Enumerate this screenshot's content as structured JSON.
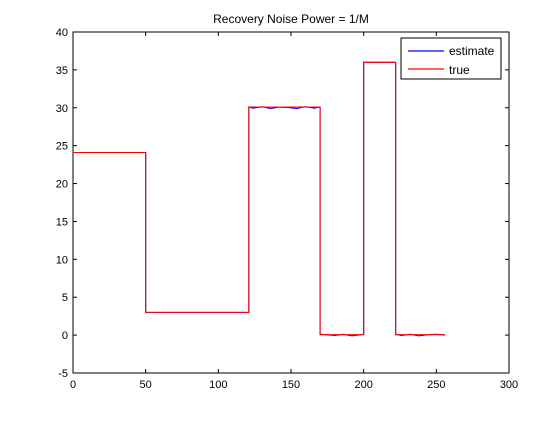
{
  "chart_data": {
    "type": "line",
    "title": "Recovery Noise Power = 1/M",
    "xlabel": "",
    "ylabel": "",
    "xlim": [
      0,
      300
    ],
    "ylim": [
      -5,
      40
    ],
    "xticks": [
      0,
      50,
      100,
      150,
      200,
      250,
      300
    ],
    "yticks": [
      -5,
      0,
      5,
      10,
      15,
      20,
      25,
      30,
      35,
      40
    ],
    "grid": false,
    "legend_position": "top-right",
    "series": [
      {
        "name": "estimate",
        "color": "#0000ff",
        "x": [
          0,
          50,
          50,
          121,
          121,
          124,
          130,
          136,
          142,
          148,
          154,
          160,
          166,
          170,
          170,
          174,
          180,
          186,
          192,
          198,
          200,
          200,
          222,
          222,
          226,
          232,
          238,
          244,
          250,
          256
        ],
        "y": [
          24.1,
          24.1,
          3.0,
          3.0,
          30.1,
          29.95,
          30.15,
          29.9,
          30.1,
          30.05,
          29.9,
          30.15,
          29.95,
          30.1,
          0.1,
          0.05,
          -0.05,
          0.1,
          -0.1,
          0.05,
          0.1,
          36.0,
          36.0,
          0.1,
          -0.05,
          0.1,
          -0.1,
          0.05,
          0.1,
          0.0
        ]
      },
      {
        "name": "true",
        "color": "#ff0000",
        "x": [
          0,
          50,
          50,
          121,
          121,
          170,
          170,
          200,
          200,
          222,
          222,
          256
        ],
        "y": [
          24.1,
          24.1,
          3.0,
          3.0,
          30.1,
          30.1,
          0.05,
          0.05,
          36.0,
          36.0,
          0.05,
          0.05
        ]
      }
    ]
  }
}
